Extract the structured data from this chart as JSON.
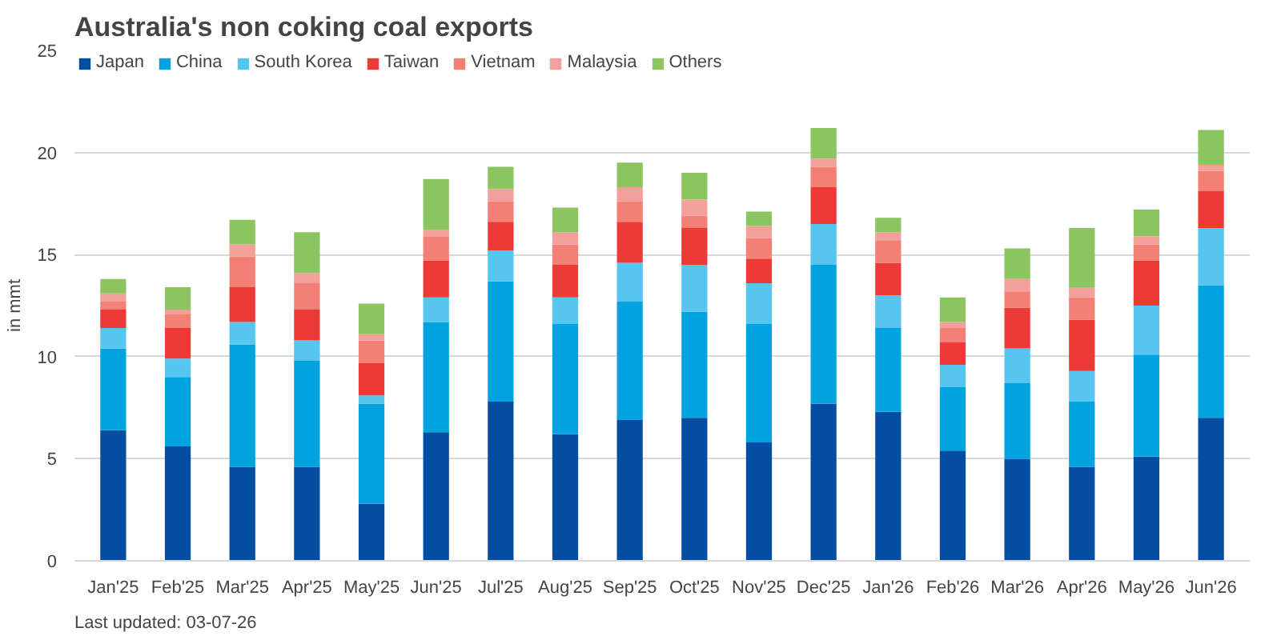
{
  "chart_data": {
    "type": "bar",
    "title": "Australia's non coking coal exports",
    "ylabel": "in mmt",
    "categories": [
      "Jan'25",
      "Feb'25",
      "Mar'25",
      "Apr'25",
      "May'25",
      "Jun'25",
      "Jul'25",
      "Aug'25",
      "Sep'25",
      "Oct'25",
      "Nov'25",
      "Dec'25",
      "Jan'26",
      "Feb'26",
      "Mar'26",
      "Apr'26",
      "May'26",
      "Jun'26"
    ],
    "stacked": true,
    "series": [
      {
        "name": "Japan",
        "color": "#034ea2",
        "values": [
          6.4,
          5.6,
          4.6,
          4.6,
          2.8,
          6.3,
          7.8,
          6.2,
          6.9,
          7.0,
          5.8,
          7.7,
          7.3,
          5.4,
          5.0,
          4.6,
          5.1,
          7.0
        ]
      },
      {
        "name": "China",
        "color": "#00a3e0",
        "values": [
          4.0,
          3.4,
          6.0,
          5.2,
          4.9,
          5.4,
          5.9,
          5.4,
          5.8,
          5.2,
          5.8,
          6.8,
          4.1,
          3.1,
          3.7,
          3.2,
          5.0,
          6.5
        ]
      },
      {
        "name": "South Korea",
        "color": "#56c5f0",
        "values": [
          1.0,
          0.9,
          1.1,
          1.0,
          0.4,
          1.2,
          1.5,
          1.3,
          1.9,
          2.3,
          2.0,
          2.0,
          1.6,
          1.1,
          1.7,
          1.5,
          2.4,
          2.8
        ]
      },
      {
        "name": "Taiwan",
        "color": "#ee3a36",
        "values": [
          0.9,
          1.5,
          1.7,
          1.5,
          1.6,
          1.8,
          1.4,
          1.6,
          2.0,
          1.8,
          1.2,
          1.8,
          1.6,
          1.1,
          2.0,
          2.5,
          2.2,
          1.8
        ]
      },
      {
        "name": "Vietnam",
        "color": "#f47f74",
        "values": [
          0.4,
          0.7,
          1.5,
          1.3,
          1.1,
          1.2,
          1.0,
          1.0,
          1.0,
          0.6,
          1.0,
          1.0,
          1.1,
          0.7,
          0.8,
          1.1,
          0.8,
          1.0
        ]
      },
      {
        "name": "Malaysia",
        "color": "#f4a09a",
        "values": [
          0.4,
          0.2,
          0.6,
          0.5,
          0.3,
          0.3,
          0.6,
          0.6,
          0.7,
          0.8,
          0.6,
          0.4,
          0.4,
          0.3,
          0.6,
          0.5,
          0.4,
          0.3
        ]
      },
      {
        "name": "Others",
        "color": "#8cc460",
        "values": [
          0.7,
          1.1,
          1.2,
          2.0,
          1.5,
          2.5,
          1.1,
          1.2,
          1.2,
          1.3,
          0.7,
          1.5,
          0.7,
          1.2,
          1.5,
          2.9,
          1.3,
          1.7
        ]
      }
    ],
    "ylim": [
      0,
      25
    ],
    "yticks": [
      0,
      5,
      10,
      15,
      20,
      25
    ],
    "grid": "y",
    "legend": "top left",
    "annotations": [
      "Last updated: 03-07-26"
    ]
  }
}
